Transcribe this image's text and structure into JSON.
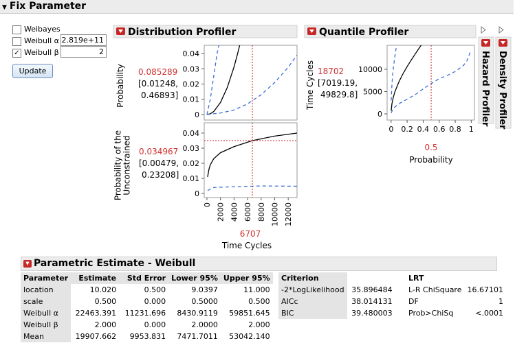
{
  "header": {
    "title": "Fix Parameter"
  },
  "fix_parameter": {
    "options": [
      {
        "label": "Weibayes",
        "checked": false
      },
      {
        "label": "Weibull α",
        "checked": false,
        "value": "2.819e+11"
      },
      {
        "label": "Weibull β",
        "checked": true,
        "value": "2"
      }
    ],
    "button": "Update"
  },
  "distribution_profiler": {
    "title": "Distribution Profiler",
    "xlabel": "Time Cycles",
    "x_value": 6707,
    "xlim": [
      -400,
      13300
    ],
    "xticks": [
      0,
      2000,
      4000,
      6000,
      8000,
      10000,
      12000
    ],
    "plots": [
      {
        "ylabel": [
          "Probability"
        ],
        "y_value": 0.085289,
        "ci": [
          "[0.01248,",
          "0.46893]"
        ],
        "ylim": [
          -0.0036,
          0.0454
        ],
        "yticks": [
          0,
          0.01,
          0.02,
          0.03,
          0.04
        ],
        "curves": [
          {
            "color": "#000000",
            "dash": false,
            "x": [
              0,
              500,
              1000,
              2000,
              3000,
              4000,
              4500,
              5000
            ],
            "values": [
              0,
              0.0005,
              0.00198,
              0.0079,
              0.01768,
              0.0312,
              0.0394,
              0.0483
            ]
          },
          {
            "color": "#3c6fd6",
            "dash": true,
            "x": [
              0,
              500,
              1000,
              1500,
              1800
            ],
            "values": [
              0,
              0.01,
              0.025,
              0.04,
              0.046
            ]
          },
          {
            "color": "#3c6fd6",
            "dash": true,
            "x": [
              0,
              2000,
              4000,
              6000,
              8000,
              10000,
              12000,
              13300
            ],
            "values": [
              0,
              0.001,
              0.003,
              0.007,
              0.013,
              0.021,
              0.031,
              0.039
            ]
          }
        ]
      },
      {
        "ylabel": [
          "Probability of the",
          "Unconstrained"
        ],
        "y_value": 0.034967,
        "ci": [
          "[0.00479,",
          "0.23208]"
        ],
        "ylim": [
          -0.0027,
          0.0468
        ],
        "yticks": [
          0,
          0.01,
          0.02,
          0.03,
          0.04
        ],
        "curves": [
          {
            "color": "#000000",
            "dash": false,
            "x": [
              100,
              300,
              500,
              1000,
              2000,
              4000,
              6707,
              10000,
              13300
            ],
            "values": [
              0.011,
              0.016,
              0.019,
              0.023,
              0.027,
              0.031,
              0.035,
              0.038,
              0.04
            ]
          },
          {
            "color": "#3c6fd6",
            "dash": true,
            "x": [
              100,
              1000,
              4000,
              8000,
              13300
            ],
            "values": [
              0.002,
              0.004,
              0.0045,
              0.005,
              0.0048
            ]
          }
        ]
      }
    ]
  },
  "quantile_profiler": {
    "title": "Quantile Profiler",
    "xlabel": "Probability",
    "x_value": 0.5,
    "xlim": [
      -0.05,
      1.04
    ],
    "xticks": [
      0,
      0.2,
      0.4,
      0.6,
      0.8,
      1
    ],
    "plot": {
      "ylabel": [
        "Time Cycles"
      ],
      "y_value": 18702,
      "ci": [
        "[7019.19,",
        "49829.8]"
      ],
      "ylim": [
        -1385,
        15385
      ],
      "yticks": [
        0,
        5000,
        10000
      ],
      "curves": [
        {
          "color": "#000000",
          "dash": false,
          "x": [
            0.001,
            0.01,
            0.03,
            0.05,
            0.1,
            0.15,
            0.2,
            0.25,
            0.3,
            0.35,
            0.38
          ],
          "values": [
            710,
            2252,
            3920,
            5087,
            7291,
            9056,
            10611,
            12048,
            13416,
            14743,
            15531
          ]
        },
        {
          "color": "#3c6fd6",
          "dash": true,
          "x": [
            0.001,
            0.01,
            0.02,
            0.04,
            0.06,
            0.08
          ],
          "values": [
            3000,
            6500,
            9000,
            12000,
            14500,
            16000
          ]
        },
        {
          "color": "#3c6fd6",
          "dash": true,
          "x": [
            0.001,
            0.02,
            0.05,
            0.1,
            0.2,
            0.3,
            0.4,
            0.5,
            0.6,
            0.7,
            0.8,
            0.9,
            0.95,
            0.99
          ],
          "values": [
            200,
            1000,
            1600,
            2300,
            3300,
            4300,
            5600,
            6800,
            7900,
            8600,
            9500,
            10800,
            12000,
            14000
          ]
        }
      ]
    }
  },
  "hazard_profiler": {
    "title": "Hazard Profiler"
  },
  "density_profiler": {
    "title": "Density Profiler"
  },
  "parametric_estimate": {
    "title": "Parametric Estimate - Weibull",
    "columns": [
      "Parameter",
      "Estimate",
      "Std Error",
      "Lower 95%",
      "Upper 95%"
    ],
    "rows": [
      [
        "location",
        "10.020",
        "0.500",
        "9.0397",
        "11.000"
      ],
      [
        "scale",
        "0.500",
        "0.000",
        "0.5000",
        "0.500"
      ],
      [
        "Weibull α",
        "22463.391",
        "11231.696",
        "8430.9119",
        "59851.645"
      ],
      [
        "Weibull β",
        "2.000",
        "0.000",
        "2.0000",
        "2.000"
      ],
      [
        "Mean",
        "19907.662",
        "9953.831",
        "7471.7011",
        "53042.140"
      ]
    ]
  },
  "criterion": {
    "columns": [
      "Criterion"
    ],
    "rows": [
      [
        "-2*LogLikelihood",
        "35.896484"
      ],
      [
        "AICc",
        "38.014131"
      ],
      [
        "BIC",
        "39.480003"
      ]
    ]
  },
  "lrt": {
    "title": "LRT",
    "rows": [
      [
        "L-R ChiSquare",
        "16.67101"
      ],
      [
        "DF",
        "1"
      ],
      [
        "Prob>ChiSq",
        "<.0001"
      ]
    ]
  }
}
